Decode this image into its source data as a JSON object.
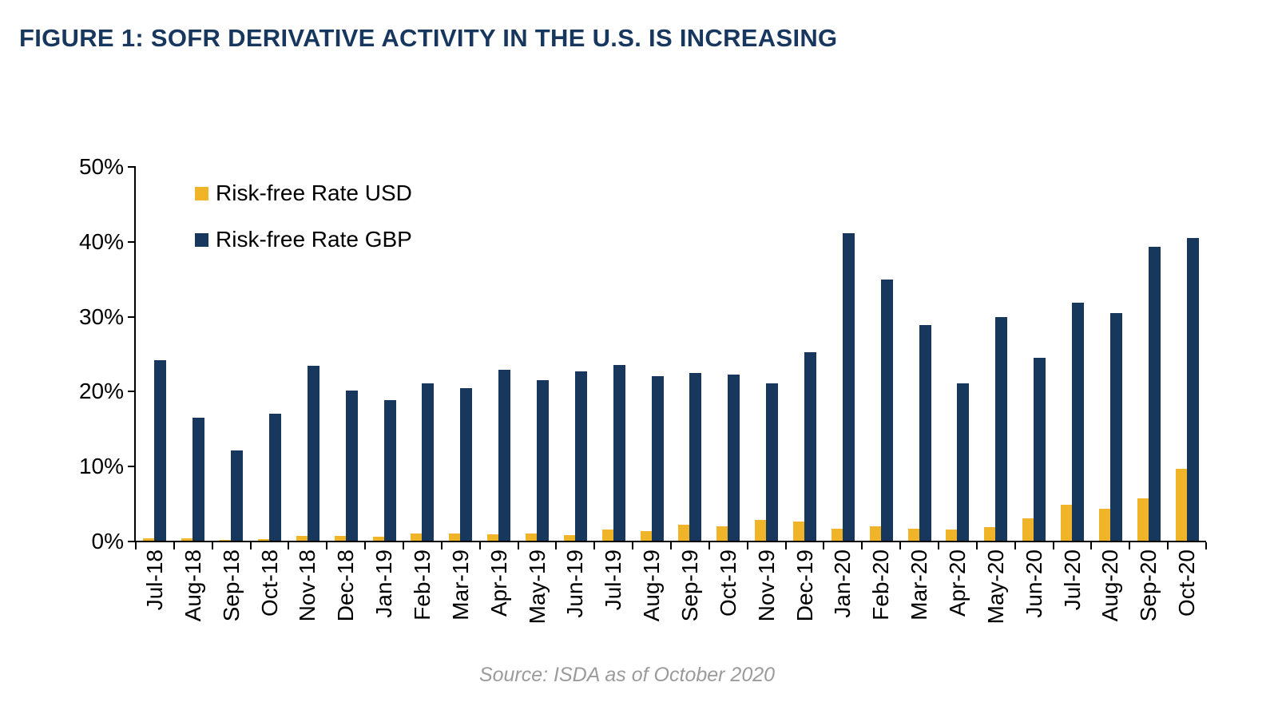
{
  "figure": {
    "title": "FIGURE 1: SOFR DERIVATIVE ACTIVITY IN THE U.S. IS INCREASING",
    "source": "Source: ISDA as of October 2020"
  },
  "colors": {
    "title": "#17375E",
    "usd": "#F0B428",
    "gbp": "#17375C",
    "axis": "#000000",
    "source_text": "#9B9B9B"
  },
  "chart_data": {
    "type": "bar",
    "title": "FIGURE 1: SOFR DERIVATIVE ACTIVITY IN THE U.S. IS INCREASING",
    "xlabel": "",
    "ylabel": "",
    "ylim": [
      0,
      50
    ],
    "ytick_labels": [
      "0%",
      "10%",
      "20%",
      "30%",
      "40%",
      "50%"
    ],
    "grid": false,
    "legend_position": "top-left-inside",
    "categories": [
      "Jul-18",
      "Aug-18",
      "Sep-18",
      "Oct-18",
      "Nov-18",
      "Dec-18",
      "Jan-19",
      "Feb-19",
      "Mar-19",
      "Apr-19",
      "May-19",
      "Jun-19",
      "Jul-19",
      "Aug-19",
      "Sep-19",
      "Oct-19",
      "Nov-19",
      "Dec-19",
      "Jan-20",
      "Feb-20",
      "Mar-20",
      "Apr-20",
      "May-20",
      "Jun-20",
      "Jul-20",
      "Aug-20",
      "Sep-20",
      "Oct-20"
    ],
    "series": [
      {
        "name": "Risk-free Rate USD",
        "color_key": "usd",
        "values": [
          0.3,
          0.3,
          0.1,
          0.2,
          0.6,
          0.6,
          0.5,
          1.0,
          1.0,
          0.8,
          1.0,
          0.7,
          1.5,
          1.3,
          2.1,
          1.9,
          2.8,
          2.6,
          1.6,
          1.9,
          1.6,
          1.5,
          1.8,
          3.0,
          4.8,
          4.3,
          5.7,
          9.6
        ]
      },
      {
        "name": "Risk-free Rate GBP",
        "color_key": "gbp",
        "values": [
          24.1,
          16.4,
          12.0,
          16.9,
          23.3,
          20.0,
          18.8,
          21.0,
          20.4,
          22.8,
          21.4,
          22.6,
          23.5,
          22.0,
          22.4,
          22.2,
          21.0,
          25.2,
          41.0,
          34.9,
          28.8,
          21.0,
          29.8,
          24.4,
          31.8,
          30.4,
          39.2,
          40.4
        ]
      }
    ]
  }
}
